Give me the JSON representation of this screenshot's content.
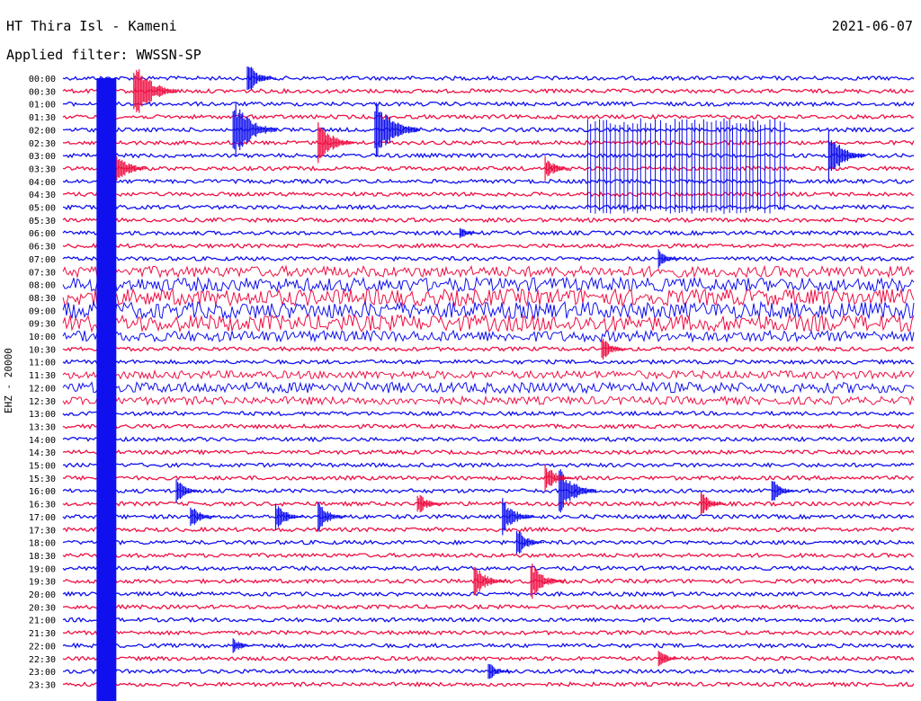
{
  "header": {
    "station": "HT Thira Isl - Kameni",
    "date": "2021-06-07",
    "filter": "Applied filter: WWSSN-SP",
    "channel": "EHZ - 20000"
  },
  "colors": {
    "a": "#1010ee",
    "b": "#ee1044"
  },
  "chart_data": {
    "type": "line",
    "title": "HT Thira Isl - Kameni",
    "subtitle": "Applied filter: WWSSN-SP",
    "ylabel": "EHZ - 20000",
    "rows": [
      "00:00",
      "00:30",
      "01:00",
      "01:30",
      "02:00",
      "02:30",
      "03:00",
      "03:30",
      "04:00",
      "04:30",
      "05:00",
      "05:30",
      "06:00",
      "06:30",
      "07:00",
      "07:30",
      "08:00",
      "08:30",
      "09:00",
      "09:30",
      "10:00",
      "10:30",
      "11:00",
      "11:30",
      "12:00",
      "12:30",
      "13:00",
      "13:30",
      "14:00",
      "14:30",
      "15:00",
      "15:30",
      "16:00",
      "16:30",
      "17:00",
      "17:30",
      "18:00",
      "18:30",
      "19:00",
      "19:30",
      "20:00",
      "20:30",
      "21:00",
      "21:30",
      "22:00",
      "22:30",
      "23:00",
      "23:30"
    ],
    "series_colors": [
      "blue",
      "red"
    ],
    "noisy_rows": [
      {
        "row": "07:30",
        "level": 0.6
      },
      {
        "row": "08:00",
        "level": 0.8
      },
      {
        "row": "08:30",
        "level": 1.0
      },
      {
        "row": "09:00",
        "level": 1.0
      },
      {
        "row": "09:30",
        "level": 1.0
      },
      {
        "row": "10:00",
        "level": 0.6
      },
      {
        "row": "11:30",
        "level": 0.4
      },
      {
        "row": "12:00",
        "level": 0.6
      },
      {
        "row": "12:30",
        "level": 0.4
      }
    ],
    "events": [
      {
        "row": "00:30",
        "minute": 2.5,
        "amplitude": 2.5
      },
      {
        "row": "00:00",
        "minute": 6.5,
        "amplitude": 1.3
      },
      {
        "row": "02:00",
        "minute": 6.0,
        "amplitude": 2.5
      },
      {
        "row": "02:30",
        "minute": 9.0,
        "amplitude": 1.8
      },
      {
        "row": "02:00",
        "minute": 11.0,
        "amplitude": 2.6
      },
      {
        "row": "03:30",
        "minute": 1.8,
        "amplitude": 1.6
      },
      {
        "row": "03:30",
        "minute": 17.0,
        "amplitude": 1.0
      },
      {
        "row": "03:00",
        "minute": 27.0,
        "amplitude": 2.0
      },
      {
        "row": "06:00",
        "minute": 14.0,
        "amplitude": 0.6
      },
      {
        "row": "07:00",
        "minute": 21.0,
        "amplitude": 0.8
      },
      {
        "row": "10:30",
        "minute": 19.0,
        "amplitude": 1.0
      },
      {
        "row": "16:00",
        "minute": 17.5,
        "amplitude": 2.0
      },
      {
        "row": "15:30",
        "minute": 17.0,
        "amplitude": 1.2
      },
      {
        "row": "17:00",
        "minute": 15.5,
        "amplitude": 1.5
      },
      {
        "row": "18:00",
        "minute": 16.0,
        "amplitude": 1.2
      },
      {
        "row": "19:30",
        "minute": 14.5,
        "amplitude": 1.4
      },
      {
        "row": "19:30",
        "minute": 16.5,
        "amplitude": 1.6
      },
      {
        "row": "16:30",
        "minute": 12.5,
        "amplitude": 1.0
      },
      {
        "row": "17:00",
        "minute": 7.5,
        "amplitude": 1.2
      },
      {
        "row": "17:00",
        "minute": 9.0,
        "amplitude": 1.2
      },
      {
        "row": "16:00",
        "minute": 4.0,
        "amplitude": 1.0
      },
      {
        "row": "17:00",
        "minute": 4.5,
        "amplitude": 1.0
      },
      {
        "row": "16:30",
        "minute": 22.5,
        "amplitude": 1.0
      },
      {
        "row": "16:00",
        "minute": 25.0,
        "amplitude": 1.0
      },
      {
        "row": "22:30",
        "minute": 21.0,
        "amplitude": 0.8
      },
      {
        "row": "23:00",
        "minute": 15.0,
        "amplitude": 0.8
      },
      {
        "row": "22:00",
        "minute": 6.0,
        "amplitude": 0.7
      }
    ],
    "burst": {
      "row_start": "02:00",
      "row_end": "05:00",
      "minute_start": 18.5,
      "minute_end": 25.5
    }
  }
}
